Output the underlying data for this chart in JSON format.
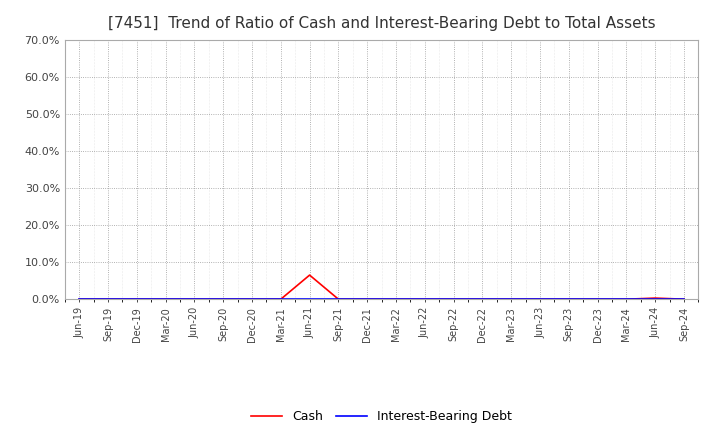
{
  "title": "[7451]  Trend of Ratio of Cash and Interest-Bearing Debt to Total Assets",
  "x_labels": [
    "Jun-19",
    "Sep-19",
    "Dec-19",
    "Mar-20",
    "Jun-20",
    "Sep-20",
    "Dec-20",
    "Mar-21",
    "Jun-21",
    "Sep-21",
    "Dec-21",
    "Mar-22",
    "Jun-22",
    "Sep-22",
    "Dec-22",
    "Mar-23",
    "Jun-23",
    "Sep-23",
    "Dec-23",
    "Mar-24",
    "Jun-24",
    "Sep-24"
  ],
  "cash_values": [
    0.0,
    0.0,
    0.0,
    0.0,
    0.0,
    0.0,
    0.0,
    0.0,
    0.065,
    0.0,
    0.0,
    0.0,
    0.0,
    0.0,
    0.0,
    0.0,
    0.0,
    0.0,
    0.0,
    0.0,
    0.003,
    0.0
  ],
  "debt_values": [
    0.0,
    0.0,
    0.0,
    0.0,
    0.0,
    0.0,
    0.0,
    0.0,
    0.0,
    0.0,
    0.0,
    0.0,
    0.0,
    0.0,
    0.0,
    0.0,
    0.0,
    0.0,
    0.0,
    0.0,
    0.0,
    0.0
  ],
  "cash_color": "#ff0000",
  "debt_color": "#0000ff",
  "ylim": [
    0.0,
    0.7
  ],
  "yticks": [
    0.0,
    0.1,
    0.2,
    0.3,
    0.4,
    0.5,
    0.6,
    0.7
  ],
  "ytick_labels": [
    "0.0%",
    "10.0%",
    "20.0%",
    "30.0%",
    "40.0%",
    "50.0%",
    "60.0%",
    "70.0%"
  ],
  "background_color": "#ffffff",
  "plot_bg_color": "#ffffff",
  "grid_color": "#aaaaaa",
  "title_fontsize": 11,
  "legend_cash": "Cash",
  "legend_debt": "Interest-Bearing Debt"
}
